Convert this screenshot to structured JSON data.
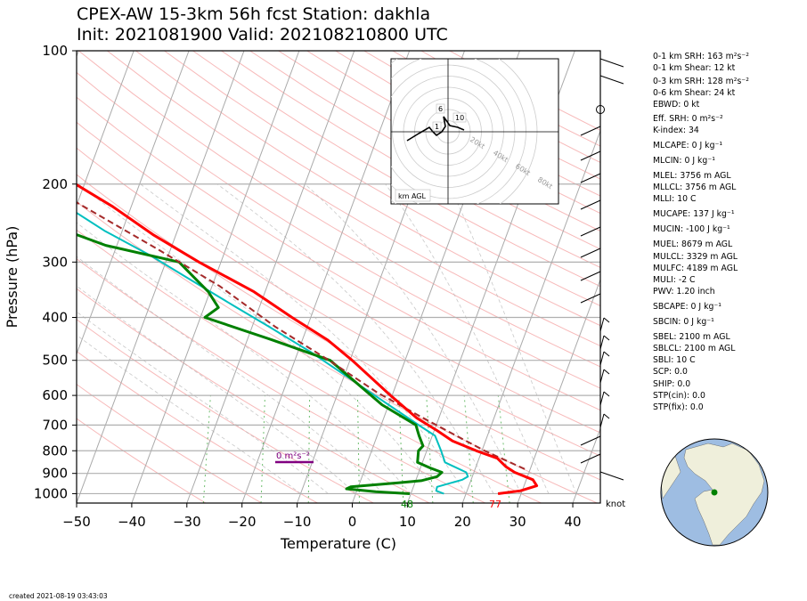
{
  "title_line1": "CPEX-AW 15-3km  56h fcst  Station: dakhla",
  "title_line2": "Init: 2021081900  Valid: 202108210800 UTC",
  "created": "created 2021-08-19 03:43:03",
  "colors": {
    "temperature": "#ff0000",
    "dewpoint": "#008000",
    "wetbulb": "#00bfbf",
    "parcel": "#a52a2a",
    "srh_bar": "#800080",
    "dry_adiabat": "#f08080",
    "moist_adiabat": "#b0b0b0",
    "mixing_ratio": "#6fbf6f"
  },
  "chart_data": {
    "type": "skew-t",
    "xlabel": "Temperature (C)",
    "ylabel": "Pressure (hPa)",
    "x_ticks": [
      -50,
      -40,
      -30,
      -20,
      -10,
      0,
      10,
      20,
      30,
      40
    ],
    "y_ticks": [
      100,
      200,
      300,
      400,
      500,
      600,
      700,
      800,
      900,
      1000
    ],
    "xlim": [
      -50,
      45
    ],
    "ylim": [
      1050,
      100
    ],
    "series": [
      {
        "name": "temperature",
        "points": [
          [
            25.8,
            1000
          ],
          [
            29.7,
            985
          ],
          [
            32.3,
            960
          ],
          [
            31.2,
            930
          ],
          [
            27.4,
            895
          ],
          [
            25.5,
            870
          ],
          [
            23.3,
            832
          ],
          [
            19,
            800
          ],
          [
            14,
            760
          ],
          [
            10.5,
            720
          ],
          [
            6,
            675
          ],
          [
            -0.3,
            600
          ],
          [
            -9.6,
            500
          ],
          [
            -15.4,
            450
          ],
          [
            -23.4,
            400
          ],
          [
            -32,
            350
          ],
          [
            -44,
            300
          ],
          [
            -54.2,
            260
          ],
          [
            -63.3,
            225
          ],
          [
            -71.6,
            200
          ],
          [
            -81,
            180
          ],
          [
            -91.5,
            160
          ],
          [
            -102.2,
            142
          ],
          [
            -106.5,
            130
          ],
          [
            -113,
            115
          ],
          [
            -118,
            100
          ]
        ]
      },
      {
        "name": "dewpoint",
        "points": [
          [
            9.8,
            1000
          ],
          [
            3.5,
            990
          ],
          [
            -2,
            975
          ],
          [
            -1.4,
            965
          ],
          [
            7,
            945
          ],
          [
            11,
            935
          ],
          [
            13.6,
            915
          ],
          [
            14.2,
            895
          ],
          [
            11.8,
            875
          ],
          [
            9.1,
            850
          ],
          [
            8.5,
            800
          ],
          [
            9,
            780
          ],
          [
            7.6,
            740
          ],
          [
            6.3,
            700
          ],
          [
            -1.2,
            630
          ],
          [
            -13.6,
            500
          ],
          [
            -25.4,
            450
          ],
          [
            -39.2,
            400
          ],
          [
            -37.4,
            380
          ],
          [
            -40.3,
            350
          ],
          [
            -43.1,
            330
          ],
          [
            -47.6,
            300
          ],
          [
            -62,
            275
          ],
          [
            -79,
            235
          ],
          [
            -71.6,
            200
          ],
          [
            -81.5,
            180
          ],
          [
            -90,
            160
          ],
          [
            -98.4,
            140
          ],
          [
            -106,
            125
          ],
          [
            -113,
            100
          ]
        ]
      },
      {
        "name": "wetbulb",
        "points": [
          [
            16,
            1000
          ],
          [
            14.4,
            985
          ],
          [
            14.3,
            965
          ],
          [
            18.4,
            930
          ],
          [
            19.2,
            915
          ],
          [
            18.6,
            895
          ],
          [
            14.1,
            850
          ],
          [
            12.6,
            800
          ],
          [
            10.5,
            740
          ],
          [
            6.8,
            700
          ],
          [
            1,
            640
          ],
          [
            -7.6,
            560
          ],
          [
            -17.5,
            480
          ],
          [
            -26.9,
            420
          ],
          [
            -34.1,
            380
          ],
          [
            -44.1,
            330
          ],
          [
            -53.2,
            290
          ],
          [
            -63.2,
            255
          ],
          [
            -71.6,
            225
          ],
          [
            -81,
            195
          ],
          [
            -91,
            170
          ],
          [
            -103,
            145
          ],
          [
            -106.5,
            130
          ],
          [
            -111.5,
            115
          ],
          [
            -117,
            100
          ]
        ]
      },
      {
        "name": "parcel",
        "points": [
          [
            29,
            880
          ],
          [
            20.5,
            800
          ],
          [
            13.3,
            730
          ],
          [
            6.6,
            670
          ],
          [
            -3,
            590
          ],
          [
            -13.8,
            500
          ],
          [
            -25.8,
            420
          ],
          [
            -38.6,
            340
          ],
          [
            -52.5,
            280
          ],
          [
            -70.2,
            220
          ],
          [
            -88.6,
            170
          ],
          [
            -108.7,
            130
          ],
          [
            -122,
            100
          ]
        ]
      }
    ],
    "surface_labels": {
      "temperature": "77",
      "dewpoint": "48"
    },
    "srh_label": "0 m²s⁻²",
    "barb_units": "knot",
    "hodograph": {
      "rings": [
        "20kt",
        "40kt",
        "60kt",
        "80kt"
      ],
      "height_labels": [
        "1",
        "6",
        "10"
      ],
      "legend": "km AGL"
    }
  },
  "indices": [
    "0-1 km SRH: 163 m²s⁻²",
    "0-1 km Shear: 12 kt",
    "0-3 km SRH: 128 m²s⁻²",
    "0-6 km Shear: 24 kt",
    "EBWD: 0 kt",
    "Eff. SRH: 0 m²s⁻²",
    "K-index: 34",
    "MLCAPE: 0 J kg⁻¹",
    "MLCIN: 0 J kg⁻¹",
    "MLEL: 3756 m AGL",
    "MLLCL: 3756 m AGL",
    "MLLI: 10 C",
    "MUCAPE: 137 J kg⁻¹",
    "MUCIN: -100 J kg⁻¹",
    "MUEL: 8679 m AGL",
    "MULCL: 3329 m AGL",
    "MULFC: 4189 m AGL",
    "MULI: -2 C",
    "PWV: 1.20 inch",
    "SBCAPE: 0 J kg⁻¹",
    "SBCIN: 0 J kg⁻¹",
    "SBEL: 2100 m AGL",
    "SBLCL: 2100 m AGL",
    "SBLI: 10 C",
    "SCP: 0.0",
    "SHIP: 0.0",
    "STP(cin): 0.0",
    "STP(fix): 0.0"
  ]
}
